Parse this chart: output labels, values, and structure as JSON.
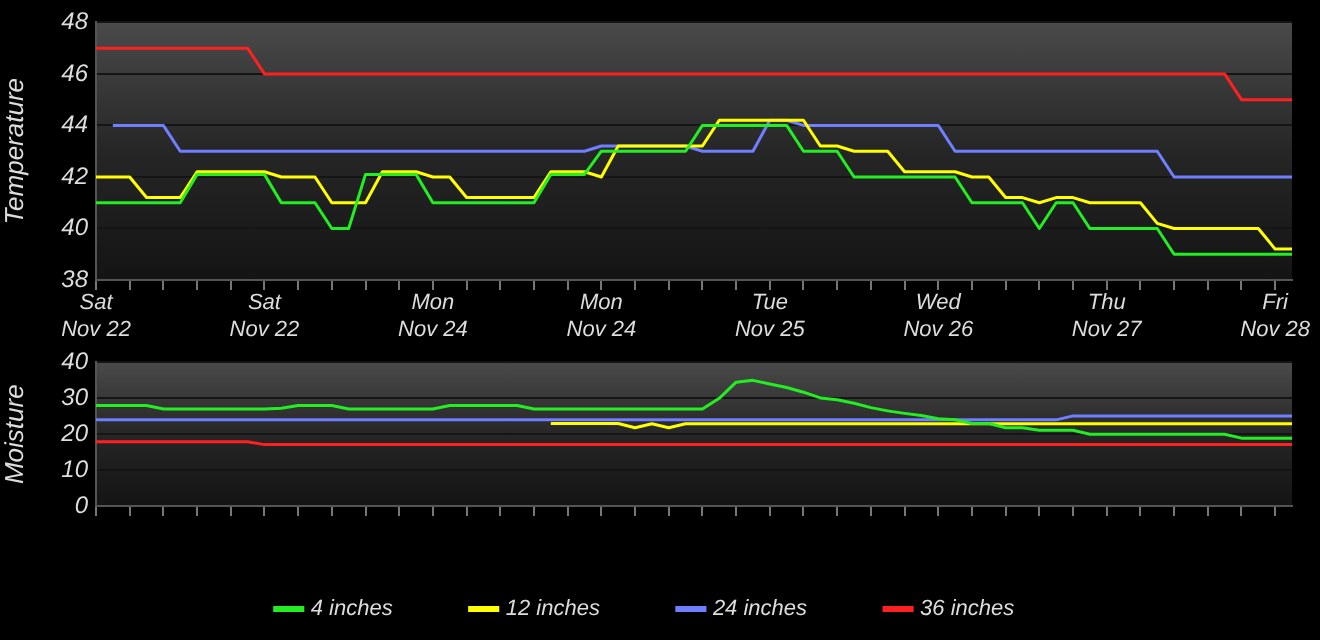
{
  "chart_data": [
    {
      "type": "line",
      "ylabel": "Temperature",
      "ylim": [
        38,
        48
      ],
      "yticks": [
        38,
        40,
        42,
        44,
        46,
        48
      ],
      "categories": [
        "Sat Nov 22",
        null,
        null,
        null,
        null,
        null,
        null,
        null,
        null,
        null,
        "Sat Nov 22",
        null,
        null,
        null,
        null,
        null,
        null,
        null,
        null,
        null,
        "Mon Nov 24",
        null,
        null,
        null,
        null,
        null,
        null,
        null,
        null,
        null,
        "Mon Nov 24",
        null,
        null,
        null,
        null,
        null,
        null,
        null,
        null,
        null,
        "Tue Nov 25",
        null,
        null,
        null,
        null,
        null,
        null,
        null,
        null,
        null,
        "Wed Nov 26",
        null,
        null,
        null,
        null,
        null,
        null,
        null,
        null,
        null,
        "Thu Nov 27",
        null,
        null,
        null,
        null,
        null,
        null,
        null,
        null,
        null,
        "Fri Nov 28",
        null
      ],
      "grid": "y",
      "legend": false,
      "marker": "none",
      "line_style": "solid",
      "series": [
        {
          "color": "#22ee22",
          "values": [
            41,
            41,
            41,
            41,
            41,
            41,
            42.1,
            42.1,
            42.1,
            42.1,
            42.1,
            41,
            41,
            41,
            40,
            40,
            42.1,
            42.1,
            42.1,
            42.1,
            41,
            41,
            41,
            41,
            41,
            41,
            41,
            42.1,
            42.1,
            42.1,
            43,
            43,
            43,
            43,
            43,
            43,
            44,
            44,
            44,
            44,
            44,
            44,
            43,
            43,
            43,
            42,
            42,
            42,
            42,
            42,
            42,
            42,
            41,
            41,
            41,
            41,
            40,
            41,
            41,
            40,
            40,
            40,
            40,
            40,
            39,
            39,
            39,
            39,
            39,
            39,
            39,
            39
          ]
        },
        {
          "color": "#ffff00",
          "values": [
            42,
            42,
            42,
            41.2,
            41.2,
            41.2,
            42.2,
            42.2,
            42.2,
            42.2,
            42.2,
            42,
            42,
            42,
            41,
            41,
            41,
            42.2,
            42.2,
            42.2,
            42,
            42,
            41.2,
            41.2,
            41.2,
            41.2,
            41.2,
            42.2,
            42.2,
            42.2,
            42,
            43.2,
            43.2,
            43.2,
            43.2,
            43.2,
            43.2,
            44.2,
            44.2,
            44.2,
            44.2,
            44.2,
            44.2,
            43.2,
            43.2,
            43,
            43,
            43,
            42.2,
            42.2,
            42.2,
            42.2,
            42,
            42,
            41.2,
            41.2,
            41,
            41.2,
            41.2,
            41,
            41,
            41,
            41,
            40.2,
            40,
            40,
            40,
            40,
            40,
            40,
            39.2,
            39.2
          ]
        },
        {
          "color": "#6f7fff",
          "values": [
            null,
            44,
            44,
            44,
            44,
            43,
            43,
            43,
            43,
            43,
            43,
            43,
            43,
            43,
            43,
            43,
            43,
            43,
            43,
            43,
            43,
            43,
            43,
            43,
            43,
            43,
            43,
            43,
            43,
            43,
            43.2,
            43.2,
            43.2,
            43.2,
            43.2,
            43.2,
            43,
            43,
            43,
            43,
            44.2,
            44.2,
            44,
            44,
            44,
            44,
            44,
            44,
            44,
            44,
            44,
            43,
            43,
            43,
            43,
            43,
            43,
            43,
            43,
            43,
            43,
            43,
            43,
            43,
            42,
            42,
            42,
            42,
            42,
            42,
            42,
            42
          ]
        },
        {
          "color": "#ff2020",
          "values": [
            47,
            47,
            47,
            47,
            47,
            47,
            47,
            47,
            47,
            47,
            46,
            46,
            46,
            46,
            46,
            46,
            46,
            46,
            46,
            46,
            46,
            46,
            46,
            46,
            46,
            46,
            46,
            46,
            46,
            46,
            46,
            46,
            46,
            46,
            46,
            46,
            46,
            46,
            46,
            46,
            46,
            46,
            46,
            46,
            46,
            46,
            46,
            46,
            46,
            46,
            46,
            46,
            46,
            46,
            46,
            46,
            46,
            46,
            46,
            46,
            46,
            46,
            46,
            46,
            46,
            46,
            46,
            46,
            45,
            45,
            45,
            45
          ]
        }
      ]
    },
    {
      "type": "line",
      "ylabel": "Moisture",
      "ylim": [
        0,
        40
      ],
      "yticks": [
        0,
        10,
        20,
        30,
        40
      ],
      "categories": [
        null,
        null,
        null,
        null,
        null,
        null,
        null,
        null,
        null,
        null,
        null,
        null,
        null,
        null,
        null,
        null,
        null,
        null,
        null,
        null,
        null,
        null,
        null,
        null,
        null,
        null,
        null,
        null,
        null,
        null,
        null,
        null,
        null,
        null,
        null,
        null,
        null,
        null,
        null,
        null,
        null,
        null,
        null,
        null,
        null,
        null,
        null,
        null,
        null,
        null,
        null,
        null,
        null,
        null,
        null,
        null,
        null,
        null,
        null,
        null,
        null,
        null,
        null,
        null,
        null,
        null,
        null,
        null,
        null,
        null,
        null,
        null
      ],
      "tick_labels": "y",
      "grid": "y",
      "legend": "bottom",
      "marker": "none",
      "line_style": "solid",
      "series": [
        {
          "name": "4 inches",
          "color": "#22ee22",
          "values": [
            28,
            28,
            28,
            28,
            27,
            27,
            27,
            27,
            27,
            27,
            27,
            27.2,
            28,
            28,
            28,
            27,
            27,
            27,
            27,
            27,
            27,
            28,
            28,
            28,
            28,
            28,
            27,
            27,
            27,
            27,
            27,
            27,
            27,
            27,
            27,
            27,
            27,
            30,
            34.5,
            35,
            34,
            33,
            31.7,
            30.1,
            29.6,
            28.6,
            27.4,
            26.5,
            25.8,
            25.2,
            24.3,
            24,
            23,
            23,
            21.8,
            21.8,
            21.1,
            21.1,
            21.1,
            20,
            20,
            20,
            20,
            20,
            20,
            20,
            20,
            20,
            18.9,
            18.9,
            18.9,
            18.9
          ]
        },
        {
          "name": "12 inches",
          "color": "#ffff00",
          "values": [
            null,
            null,
            null,
            null,
            null,
            null,
            null,
            null,
            null,
            null,
            null,
            null,
            null,
            null,
            null,
            null,
            null,
            null,
            null,
            null,
            null,
            null,
            null,
            null,
            null,
            null,
            null,
            23,
            23,
            23,
            23,
            23,
            21.8,
            22.9,
            21.8,
            22.9,
            22.9,
            22.9,
            22.9,
            22.9,
            22.9,
            22.9,
            22.9,
            22.9,
            22.9,
            22.9,
            22.9,
            22.9,
            22.9,
            22.9,
            22.9,
            22.9,
            22.9,
            22.9,
            22.9,
            22.9,
            22.9,
            22.9,
            22.9,
            22.9,
            22.9,
            22.9,
            22.9,
            22.9,
            22.9,
            22.9,
            22.9,
            22.9,
            22.9,
            22.9,
            22.9,
            22.9
          ]
        },
        {
          "name": "24 inches",
          "color": "#6f7fff",
          "values": [
            24,
            24,
            24,
            24,
            24,
            24,
            24,
            24,
            24,
            24,
            24,
            24,
            24,
            24,
            24,
            24,
            24,
            24,
            24,
            24,
            24,
            24,
            24,
            24,
            24,
            24,
            24,
            24,
            24,
            24,
            24,
            24,
            24,
            24,
            24,
            24,
            24,
            24,
            24,
            24,
            24,
            24,
            24,
            24,
            24,
            24,
            24,
            24,
            24,
            24,
            24,
            24,
            24,
            24,
            24,
            24,
            24,
            24,
            25.1,
            25.1,
            25.1,
            25.1,
            25.1,
            25.1,
            25.1,
            25.1,
            25.1,
            25.1,
            25.1,
            25.1,
            25.1,
            25.1
          ]
        },
        {
          "name": "36 inches",
          "color": "#ff2020",
          "values": [
            17.9,
            17.9,
            17.9,
            17.9,
            17.9,
            17.9,
            17.9,
            17.9,
            17.9,
            17.9,
            17.1,
            17.1,
            17.1,
            17.1,
            17.1,
            17.1,
            17.1,
            17.1,
            17.1,
            17.1,
            17.1,
            17.1,
            17.1,
            17.1,
            17.1,
            17.1,
            17.1,
            17.1,
            17.1,
            17.1,
            17.1,
            17.1,
            17.1,
            17.1,
            17.1,
            17.1,
            17.1,
            17.1,
            17.1,
            17.1,
            17.1,
            17.1,
            17.1,
            17.1,
            17.1,
            17.1,
            17.1,
            17.1,
            17.1,
            17.1,
            17.1,
            17.1,
            17.1,
            17.1,
            17.1,
            17.1,
            17.1,
            17.1,
            17.1,
            17.1,
            17.1,
            17.1,
            17.1,
            17.1,
            17.1,
            17.1,
            17.1,
            17.1,
            17.1,
            17.1,
            17.1,
            17.1
          ]
        }
      ]
    }
  ]
}
